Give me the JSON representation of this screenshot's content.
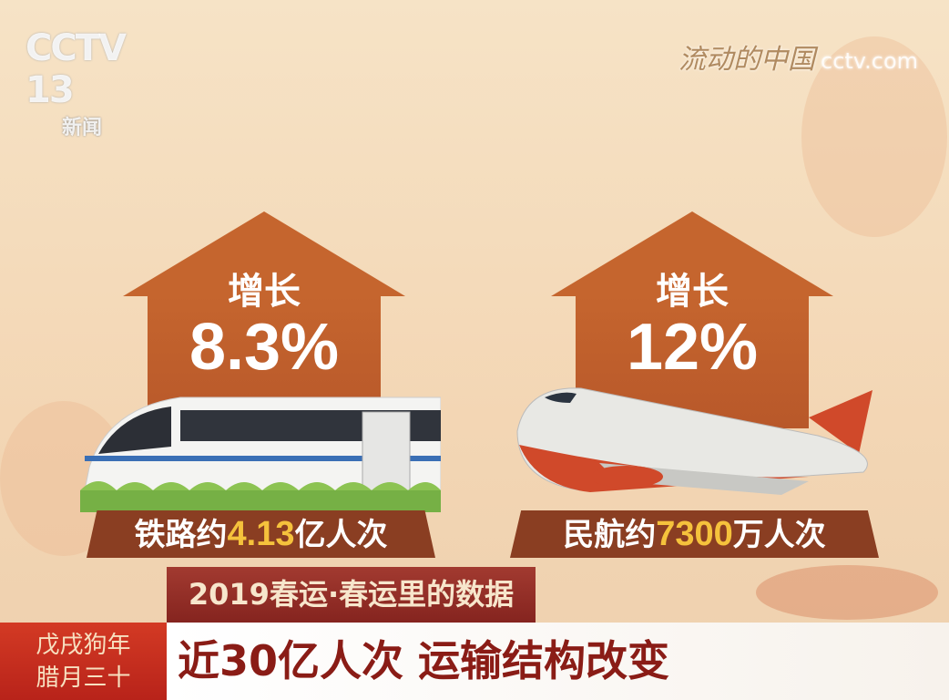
{
  "channel_logo": {
    "brand": "CCTV",
    "number": "13",
    "name": "新闻"
  },
  "show_logo": {
    "title": "流动的中国",
    "site": "cctv.com"
  },
  "rail": {
    "growth_label": "增长",
    "growth_value": "8.3%",
    "label_prefix": "铁路约",
    "label_number": "4.13",
    "label_suffix": "亿人次"
  },
  "air": {
    "growth_label": "增长",
    "growth_value": "12%",
    "label_prefix": "民航约",
    "label_number": "7300",
    "label_suffix": "万人次"
  },
  "caption": "2019春运·春运里的数据",
  "date": {
    "line1": "戊戌狗年",
    "line2": "腊月三十"
  },
  "headline": "近30亿人次 运输结构改变",
  "colors": {
    "arrow": "#c5652e",
    "banner": "#8a3e22",
    "number": "#f5c23c",
    "date_box": "#c8281e",
    "headline_text": "#8a1c16"
  }
}
